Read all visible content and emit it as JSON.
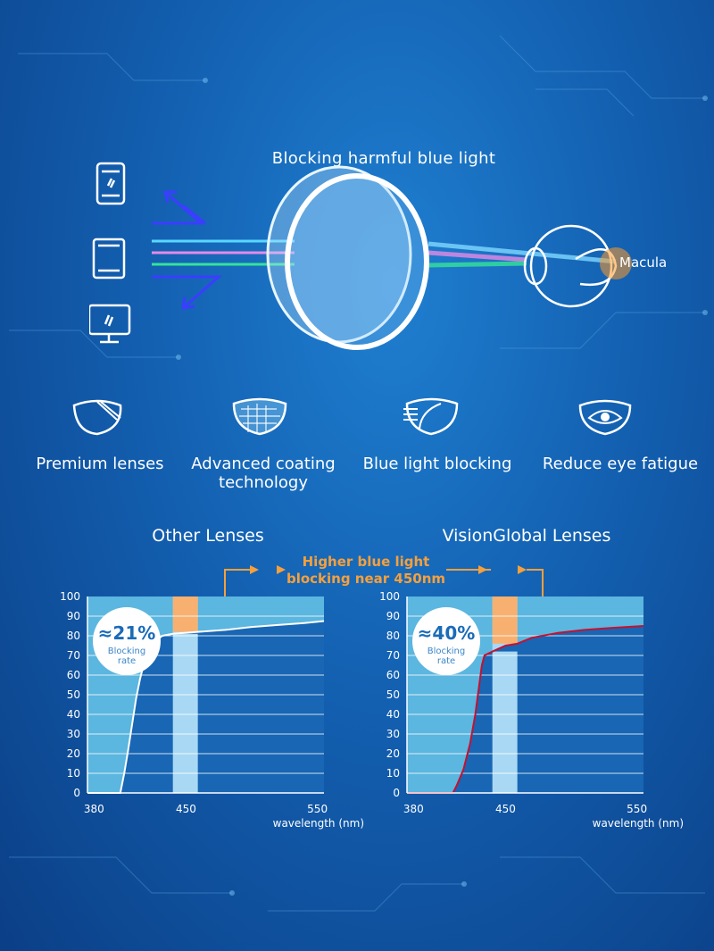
{
  "header": {
    "title": "Blocking harmful blue light",
    "eye_label": "Macula"
  },
  "icons": {
    "devices": [
      "phone-icon",
      "tablet-icon",
      "monitor-icon"
    ],
    "features": [
      "lens-icon",
      "honeycomb-coating-icon",
      "blue-light-block-icon",
      "eye-icon"
    ]
  },
  "features": [
    {
      "label": "Premium lenses"
    },
    {
      "line1": "Advanced coating",
      "line2": "technology"
    },
    {
      "label": "Blue light blocking"
    },
    {
      "label": "Reduce eye fatigue"
    }
  ],
  "callout": {
    "line1": "Higher blue light",
    "line2": "blocking near 450nm",
    "color": "#f6a03c"
  },
  "colors": {
    "chart_bg": "#5bb6e0",
    "band": "#a8d8f3",
    "highlight": "#f8b070",
    "curve_other": "#ffffff",
    "curve_vision": "#c8102e"
  },
  "chart_data": [
    {
      "type": "area",
      "title": "Other Lenses",
      "badge_value": "≈21%",
      "badge_label_1": "Blocking",
      "badge_label_2": "rate",
      "xlabel": "wavelength (nm)",
      "ylabel": "",
      "x_ticks": [
        380,
        450,
        550
      ],
      "y_ticks": [
        0,
        10,
        20,
        30,
        40,
        50,
        60,
        70,
        80,
        90,
        100
      ],
      "xlim": [
        375,
        555
      ],
      "ylim": [
        0,
        100
      ],
      "band": [
        440,
        459
      ],
      "highlight_band": [
        440,
        459
      ],
      "highlight_range": [
        82,
        100
      ],
      "x": [
        375,
        400,
        403,
        406,
        409,
        412,
        415,
        418,
        422,
        426,
        432,
        440,
        459,
        480,
        500,
        520,
        540,
        555
      ],
      "y": [
        0,
        0,
        10,
        22,
        35,
        48,
        58,
        66,
        72,
        77,
        80,
        81,
        82,
        83,
        84.5,
        85.5,
        86.5,
        87.5
      ]
    },
    {
      "type": "area",
      "title": "VisionGlobal Lenses",
      "badge_value": "≈40%",
      "badge_label_1": "Blocking",
      "badge_label_2": "rate",
      "xlabel": "wavelength (nm)",
      "ylabel": "",
      "x_ticks": [
        380,
        450,
        550
      ],
      "y_ticks": [
        0,
        10,
        20,
        30,
        40,
        50,
        60,
        70,
        80,
        90,
        100
      ],
      "xlim": [
        375,
        555
      ],
      "ylim": [
        0,
        100
      ],
      "band": [
        440,
        459
      ],
      "highlight_band": [
        440,
        459
      ],
      "highlight_range": [
        76,
        100
      ],
      "x": [
        375,
        410,
        413,
        418,
        423,
        427,
        430,
        432,
        434,
        437,
        440,
        445,
        450,
        459,
        470,
        490,
        510,
        530,
        555
      ],
      "y": [
        0,
        0,
        4,
        12,
        25,
        40,
        55,
        65,
        70,
        71,
        72,
        73.5,
        75,
        76,
        79,
        81.5,
        83,
        84,
        85
      ]
    }
  ]
}
